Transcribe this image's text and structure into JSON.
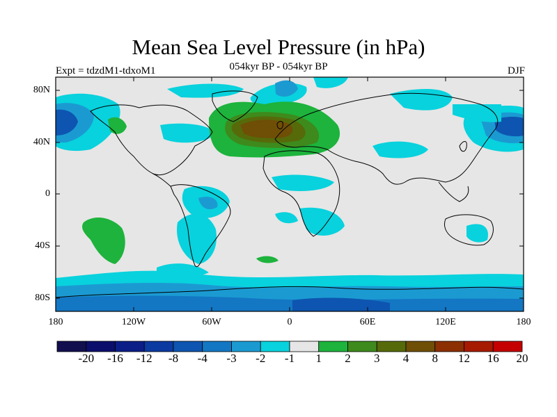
{
  "title": "Mean Sea Level Pressure (in hPa)",
  "subtitle": "054kyr BP - 054kyr BP",
  "experiment": "Expt = tdzdM1-tdxoM1",
  "season": "DJF",
  "lat_labels": [
    "80N",
    "40N",
    "0",
    "40S",
    "80S"
  ],
  "lon_labels": [
    "180",
    "120W",
    "60W",
    "0",
    "60E",
    "120E",
    "180"
  ],
  "colorbar": {
    "labels": [
      "-20",
      "-16",
      "-12",
      "-8",
      "-4",
      "-3",
      "-2",
      "-1",
      "1",
      "2",
      "3",
      "4",
      "8",
      "12",
      "16",
      "20"
    ],
    "colors": [
      "#120f4f",
      "#0b0e6b",
      "#0b1e88",
      "#0b3aa0",
      "#0d55b0",
      "#1377c4",
      "#1b9ad2",
      "#08d2dd",
      "#e6e6e6",
      "#1db33c",
      "#3e8a1c",
      "#566a0a",
      "#6f4e06",
      "#8c2f02",
      "#a61a00",
      "#c40000"
    ]
  },
  "colors": {
    "ocean_neutral": "#e6e6e6",
    "coast": "#000000"
  }
}
